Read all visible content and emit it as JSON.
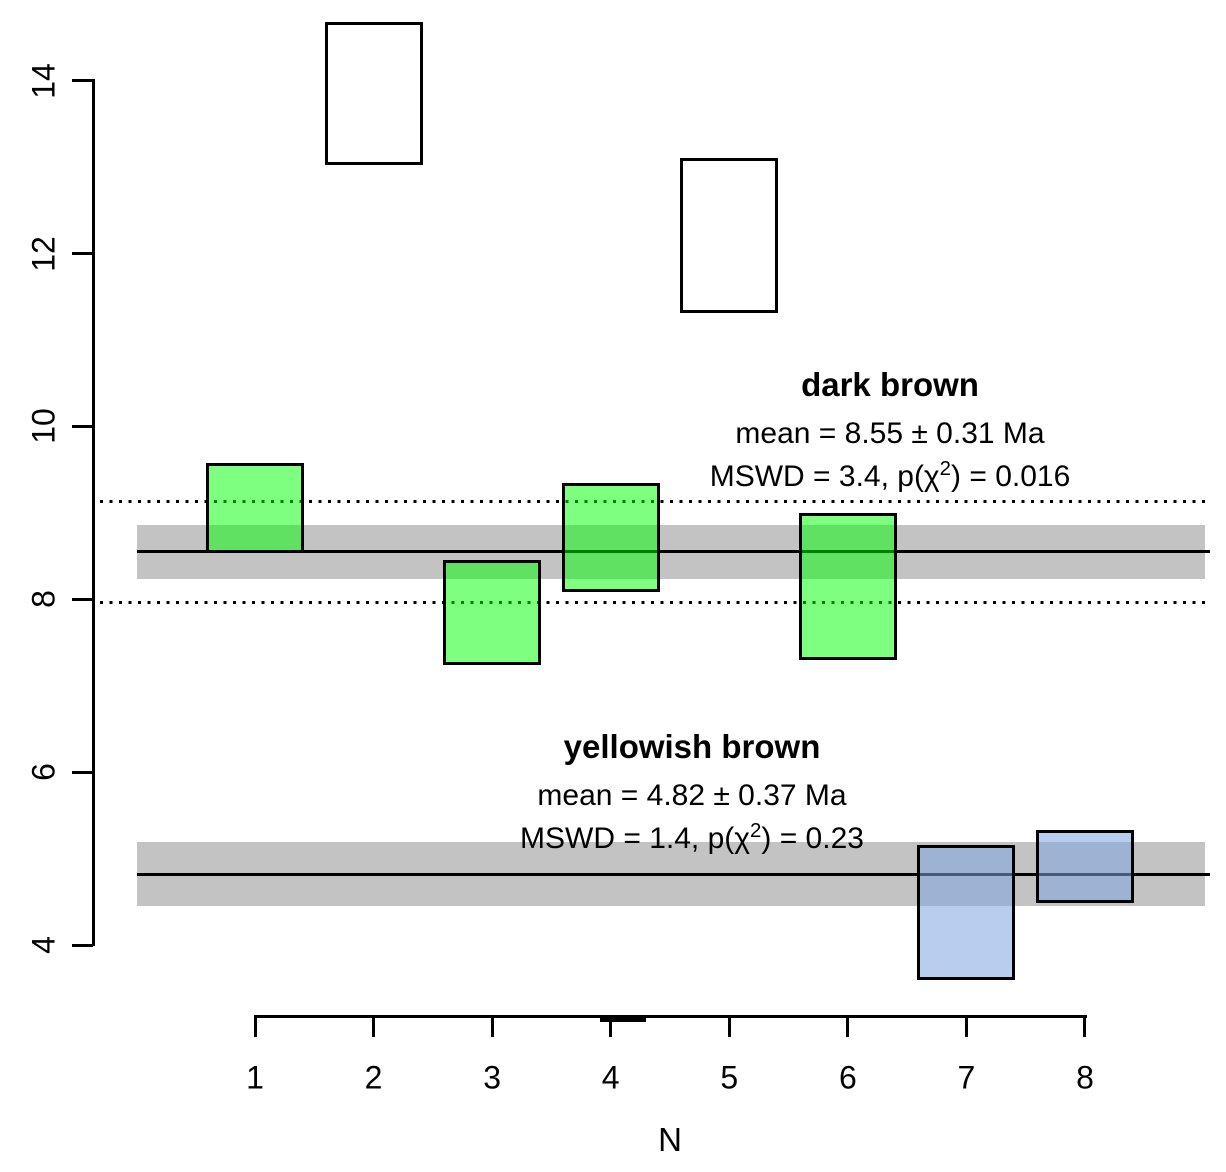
{
  "chart_data": {
    "type": "bar",
    "subtype": "weighted-mean-error-rectangles",
    "title": "",
    "xlabel": "N",
    "ylabel": "",
    "x_ticks": [
      1,
      2,
      3,
      4,
      5,
      6,
      7,
      8
    ],
    "y_ticks": [
      4,
      6,
      8,
      10,
      12,
      14
    ],
    "xlim": [
      0.5,
      9.1
    ],
    "ylim": [
      3.17,
      14.93
    ],
    "grid": false,
    "legend_position": "none",
    "colors": {
      "dark_brown_fill": "rgba(0,255,0,0.5)",
      "yellowish_brown_fill": "rgba(125,165,225,0.55)",
      "excluded_fill": "none",
      "confidence_band": "#c3c3c3",
      "outline": "#000000"
    },
    "samples": [
      {
        "n": 1,
        "y_low": 8.53,
        "y_high": 9.58,
        "group": "dark brown",
        "fill": "rgba(0,255,0,0.5)"
      },
      {
        "n": 2,
        "y_low": 13.02,
        "y_high": 14.68,
        "group": "excluded",
        "fill": "none"
      },
      {
        "n": 3,
        "y_low": 7.24,
        "y_high": 8.45,
        "group": "dark brown",
        "fill": "rgba(0,255,0,0.5)"
      },
      {
        "n": 4,
        "y_low": 8.08,
        "y_high": 9.34,
        "group": "dark brown",
        "fill": "rgba(0,255,0,0.5)"
      },
      {
        "n": 5,
        "y_low": 11.31,
        "y_high": 13.11,
        "group": "excluded",
        "fill": "none"
      },
      {
        "n": 6,
        "y_low": 7.3,
        "y_high": 9.0,
        "group": "dark brown",
        "fill": "rgba(0,255,0,0.5)"
      },
      {
        "n": 7,
        "y_low": 3.6,
        "y_high": 5.16,
        "group": "yellowish brown",
        "fill": "rgba(125,165,225,0.55)"
      },
      {
        "n": 8,
        "y_low": 4.49,
        "y_high": 5.33,
        "group": "yellowish brown",
        "fill": "rgba(125,165,225,0.55)"
      }
    ],
    "groups": [
      {
        "name_label": "dark brown",
        "mean": 8.55,
        "uncertainty": 0.31,
        "unit": "Ma",
        "mswd": 3.4,
        "p_chisq": 0.016,
        "band_low": 8.24,
        "band_high": 8.86,
        "dispersion_low": 7.96,
        "dispersion_high": 9.13,
        "label_mean": "mean = 8.55 ± 0.31 Ma",
        "label_mswd_prefix": "MSWD = 3.4, p(χ",
        "label_mswd_sup": "2",
        "label_mswd_suffix": ") = 0.016"
      },
      {
        "name_label": "yellowish brown",
        "mean": 4.82,
        "uncertainty": 0.37,
        "unit": "Ma",
        "mswd": 1.4,
        "p_chisq": 0.23,
        "band_low": 4.45,
        "band_high": 5.19,
        "label_mean": "mean = 4.82 ± 0.37 Ma",
        "label_mswd_prefix": "MSWD = 1.4, p(χ",
        "label_mswd_sup": "2",
        "label_mswd_suffix": ") = 0.23"
      }
    ]
  }
}
